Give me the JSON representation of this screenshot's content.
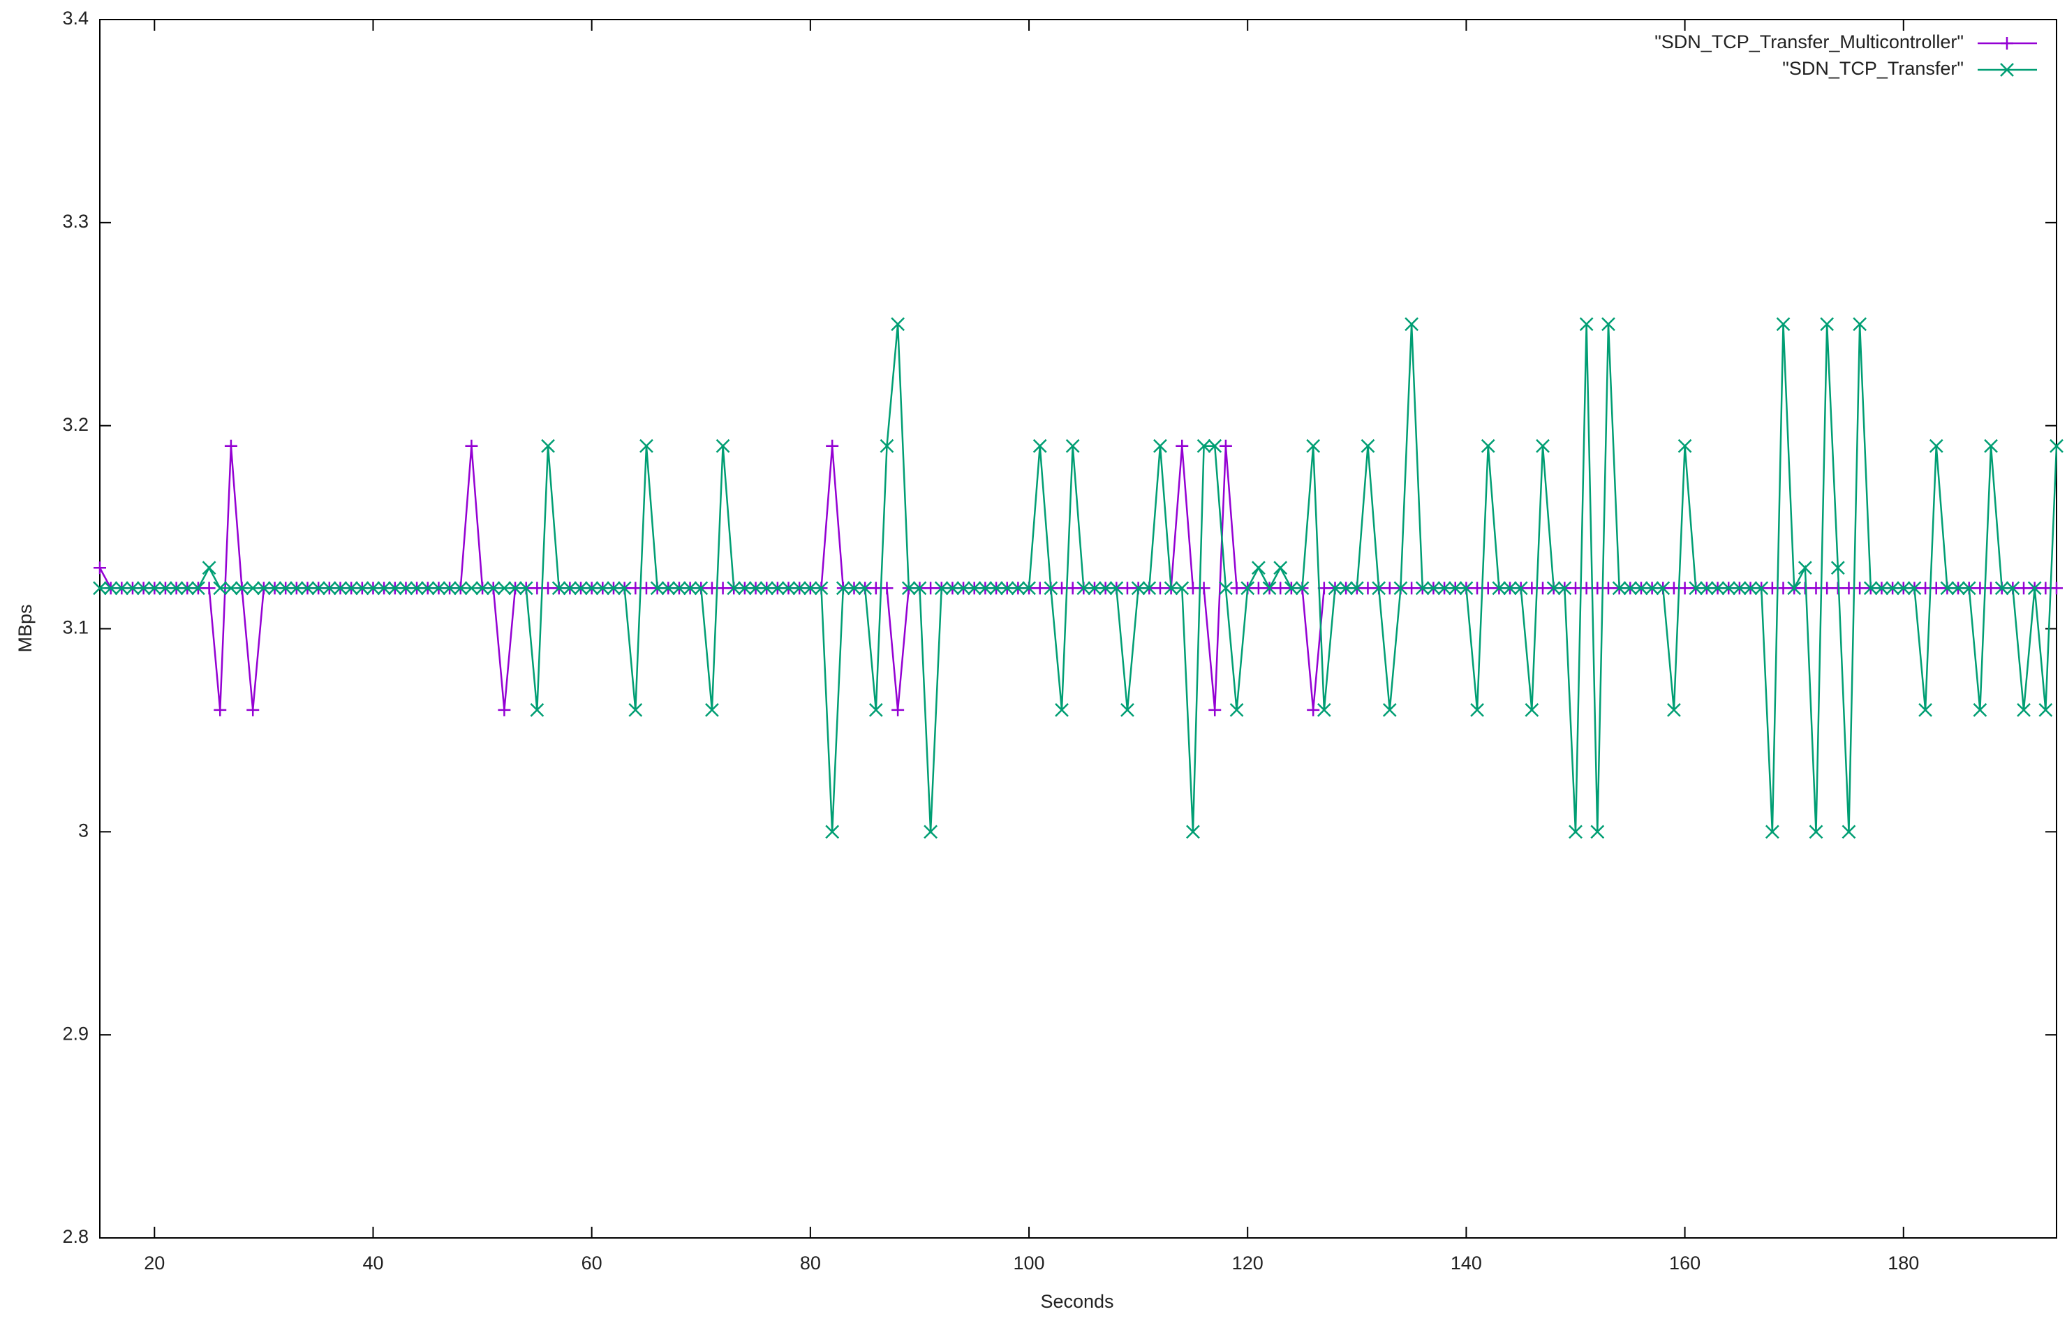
{
  "chart_data": {
    "type": "line",
    "xlabel": "Seconds",
    "ylabel": "MBps",
    "xlim": [
      15,
      194
    ],
    "ylim": [
      2.8,
      3.4
    ],
    "xticks": [
      20,
      40,
      60,
      80,
      100,
      120,
      140,
      160,
      180
    ],
    "yticks": [
      2.8,
      2.9,
      3,
      3.1,
      3.2,
      3.3,
      3.4
    ],
    "legend": "top-right",
    "x": [
      15,
      16,
      17,
      18,
      19,
      20,
      21,
      22,
      23,
      24,
      25,
      26,
      27,
      28,
      29,
      30,
      31,
      32,
      33,
      34,
      35,
      36,
      37,
      38,
      39,
      40,
      41,
      42,
      43,
      44,
      45,
      46,
      47,
      48,
      49,
      50,
      51,
      52,
      53,
      54,
      55,
      56,
      57,
      58,
      59,
      60,
      61,
      62,
      63,
      64,
      65,
      66,
      67,
      68,
      69,
      70,
      71,
      72,
      73,
      74,
      75,
      76,
      77,
      78,
      79,
      80,
      81,
      82,
      83,
      84,
      85,
      86,
      87,
      88,
      89,
      90,
      91,
      92,
      93,
      94,
      95,
      96,
      97,
      98,
      99,
      100,
      101,
      102,
      103,
      104,
      105,
      106,
      107,
      108,
      109,
      110,
      111,
      112,
      113,
      114,
      115,
      116,
      117,
      118,
      119,
      120,
      121,
      122,
      123,
      124,
      125,
      126,
      127,
      128,
      129,
      130,
      131,
      132,
      133,
      134,
      135,
      136,
      137,
      138,
      139,
      140,
      141,
      142,
      143,
      144,
      145,
      146,
      147,
      148,
      149,
      150,
      151,
      152,
      153,
      154,
      155,
      156,
      157,
      158,
      159,
      160,
      161,
      162,
      163,
      164,
      165,
      166,
      167,
      168,
      169,
      170,
      171,
      172,
      173,
      174,
      175,
      176,
      177,
      178,
      179,
      180,
      181,
      182,
      183,
      184,
      185,
      186,
      187,
      188,
      189,
      190,
      191,
      192,
      193,
      194
    ],
    "series": [
      {
        "name": "\"SDN_TCP_Transfer_Multicontroller\"",
        "color": "#9400d3",
        "marker": "+",
        "values": [
          3.13,
          3.12,
          3.12,
          3.12,
          3.12,
          3.12,
          3.12,
          3.12,
          3.12,
          3.12,
          3.12,
          3.06,
          3.19,
          3.12,
          3.06,
          3.12,
          3.12,
          3.12,
          3.12,
          3.12,
          3.12,
          3.12,
          3.12,
          3.12,
          3.12,
          3.12,
          3.12,
          3.12,
          3.12,
          3.12,
          3.12,
          3.12,
          3.12,
          3.12,
          3.19,
          3.12,
          3.12,
          3.06,
          3.12,
          3.12,
          3.12,
          3.12,
          3.12,
          3.12,
          3.12,
          3.12,
          3.12,
          3.12,
          3.12,
          3.12,
          3.12,
          3.12,
          3.12,
          3.12,
          3.12,
          3.12,
          3.12,
          3.12,
          3.12,
          3.12,
          3.12,
          3.12,
          3.12,
          3.12,
          3.12,
          3.12,
          3.12,
          3.19,
          3.12,
          3.12,
          3.12,
          3.12,
          3.12,
          3.06,
          3.12,
          3.12,
          3.12,
          3.12,
          3.12,
          3.12,
          3.12,
          3.12,
          3.12,
          3.12,
          3.12,
          3.12,
          3.12,
          3.12,
          3.12,
          3.12,
          3.12,
          3.12,
          3.12,
          3.12,
          3.12,
          3.12,
          3.12,
          3.12,
          3.12,
          3.19,
          3.12,
          3.12,
          3.06,
          3.19,
          3.12,
          3.12,
          3.12,
          3.12,
          3.12,
          3.12,
          3.12,
          3.06,
          3.12,
          3.12,
          3.12,
          3.12,
          3.12,
          3.12,
          3.12,
          3.12,
          3.12,
          3.12,
          3.12,
          3.12,
          3.12,
          3.12,
          3.12,
          3.12,
          3.12,
          3.12,
          3.12,
          3.12,
          3.12,
          3.12,
          3.12,
          3.12,
          3.12,
          3.12,
          3.12,
          3.12,
          3.12,
          3.12,
          3.12,
          3.12,
          3.12,
          3.12,
          3.12,
          3.12,
          3.12,
          3.12,
          3.12,
          3.12,
          3.12,
          3.12,
          3.12,
          3.12,
          3.12,
          3.12,
          3.12,
          3.12,
          3.12,
          3.12,
          3.12,
          3.12,
          3.12,
          3.12,
          3.12,
          3.12,
          3.12,
          3.12,
          3.12,
          3.12,
          3.12,
          3.12,
          3.12,
          3.12,
          3.12,
          3.12,
          3.12,
          3.12
        ]
      },
      {
        "name": "\"SDN_TCP_Transfer\"",
        "color": "#009e73",
        "marker": "x",
        "values": [
          3.12,
          3.12,
          3.12,
          3.12,
          3.12,
          3.12,
          3.12,
          3.12,
          3.12,
          3.12,
          3.13,
          3.12,
          3.12,
          3.12,
          3.12,
          3.12,
          3.12,
          3.12,
          3.12,
          3.12,
          3.12,
          3.12,
          3.12,
          3.12,
          3.12,
          3.12,
          3.12,
          3.12,
          3.12,
          3.12,
          3.12,
          3.12,
          3.12,
          3.12,
          3.12,
          3.12,
          3.12,
          3.12,
          3.12,
          3.12,
          3.06,
          3.19,
          3.12,
          3.12,
          3.12,
          3.12,
          3.12,
          3.12,
          3.12,
          3.06,
          3.19,
          3.12,
          3.12,
          3.12,
          3.12,
          3.12,
          3.06,
          3.19,
          3.12,
          3.12,
          3.12,
          3.12,
          3.12,
          3.12,
          3.12,
          3.12,
          3.12,
          3.0,
          3.12,
          3.12,
          3.12,
          3.06,
          3.19,
          3.25,
          3.12,
          3.12,
          3.0,
          3.12,
          3.12,
          3.12,
          3.12,
          3.12,
          3.12,
          3.12,
          3.12,
          3.12,
          3.19,
          3.12,
          3.06,
          3.19,
          3.12,
          3.12,
          3.12,
          3.12,
          3.06,
          3.12,
          3.12,
          3.19,
          3.12,
          3.12,
          3.0,
          3.19,
          3.19,
          3.12,
          3.06,
          3.12,
          3.13,
          3.12,
          3.13,
          3.12,
          3.12,
          3.19,
          3.06,
          3.12,
          3.12,
          3.12,
          3.19,
          3.12,
          3.06,
          3.12,
          3.25,
          3.12,
          3.12,
          3.12,
          3.12,
          3.12,
          3.06,
          3.19,
          3.12,
          3.12,
          3.12,
          3.06,
          3.19,
          3.12,
          3.12,
          3.0,
          3.25,
          3.0,
          3.25,
          3.12,
          3.12,
          3.12,
          3.12,
          3.12,
          3.06,
          3.19,
          3.12,
          3.12,
          3.12,
          3.12,
          3.12,
          3.12,
          3.12,
          3.0,
          3.25,
          3.12,
          3.13,
          3.0,
          3.25,
          3.13,
          3.0,
          3.25,
          3.12,
          3.12,
          3.12,
          3.12,
          3.12,
          3.06,
          3.19,
          3.12,
          3.12,
          3.12,
          3.06,
          3.19,
          3.12,
          3.12,
          3.06,
          3.12,
          3.06,
          3.19
        ]
      }
    ]
  }
}
